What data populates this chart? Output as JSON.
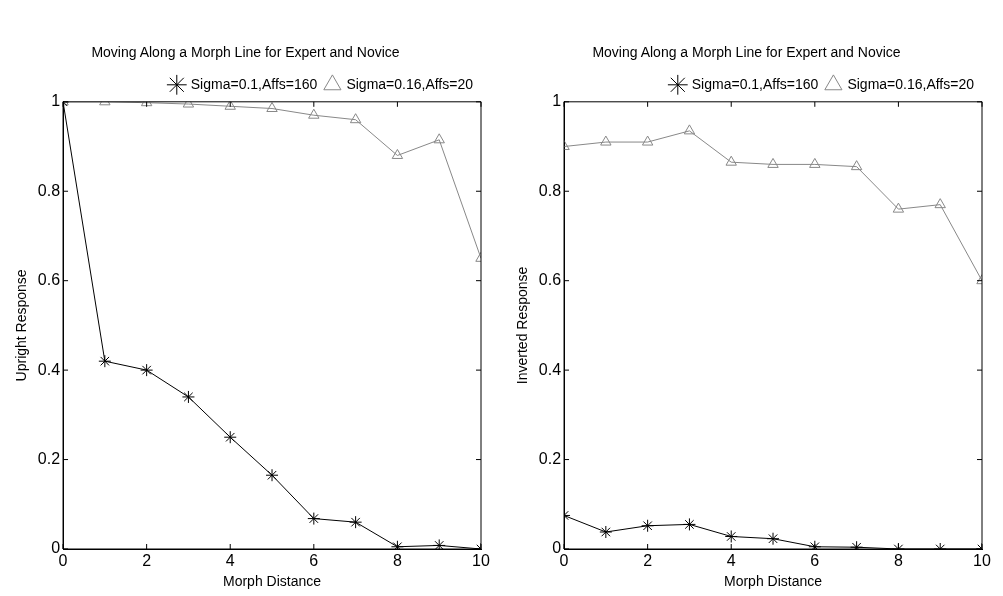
{
  "chart_data": [
    {
      "type": "line",
      "title": "Moving Along a Morph Line for Expert and Novice",
      "xlabel": "Morph Distance",
      "ylabel": "Upright Response",
      "x": [
        0,
        1,
        2,
        3,
        4,
        5,
        6,
        7,
        8,
        9,
        10
      ],
      "xlim": [
        0,
        10
      ],
      "xticks": [
        0,
        2,
        4,
        6,
        8,
        10
      ],
      "ylim": [
        0,
        1
      ],
      "yticks": [
        0,
        0.2,
        0.4,
        0.6,
        0.8,
        1
      ],
      "grid": false,
      "legend": "top right",
      "series": [
        {
          "name": "Sigma=0.1,Affs=160",
          "color": "#000000",
          "marker": "cross",
          "values": [
            1,
            0.42,
            0.4,
            0.34,
            0.25,
            0.165,
            0.068,
            0.06,
            0.005,
            0.008,
            0
          ]
        },
        {
          "name": "Sigma=0.16,Affs=20",
          "color": "#888888",
          "marker": "triangle",
          "values": [
            1,
            1,
            0.998,
            0.995,
            0.99,
            0.985,
            0.97,
            0.96,
            0.88,
            0.915,
            0.65
          ]
        }
      ]
    },
    {
      "type": "line",
      "title": "Moving Along a Morph Line for Expert and Novice",
      "xlabel": "Morph Distance",
      "ylabel": "Inverted Response",
      "x": [
        0,
        1,
        2,
        3,
        4,
        5,
        6,
        7,
        8,
        9,
        10
      ],
      "xlim": [
        0,
        10
      ],
      "xticks": [
        0,
        2,
        4,
        6,
        8,
        10
      ],
      "ylim": [
        0,
        1
      ],
      "yticks": [
        0,
        0.2,
        0.4,
        0.6,
        0.8,
        1
      ],
      "grid": false,
      "legend": "top right",
      "series": [
        {
          "name": "Sigma=0.1,Affs=160",
          "color": "#000000",
          "marker": "cross",
          "values": [
            0.075,
            0.038,
            0.052,
            0.055,
            0.028,
            0.023,
            0.005,
            0.004,
            0,
            0,
            0
          ]
        },
        {
          "name": "Sigma=0.16,Affs=20",
          "color": "#888888",
          "marker": "triangle",
          "values": [
            0.9,
            0.91,
            0.91,
            0.935,
            0.865,
            0.86,
            0.86,
            0.855,
            0.76,
            0.77,
            0.6
          ]
        }
      ]
    }
  ]
}
